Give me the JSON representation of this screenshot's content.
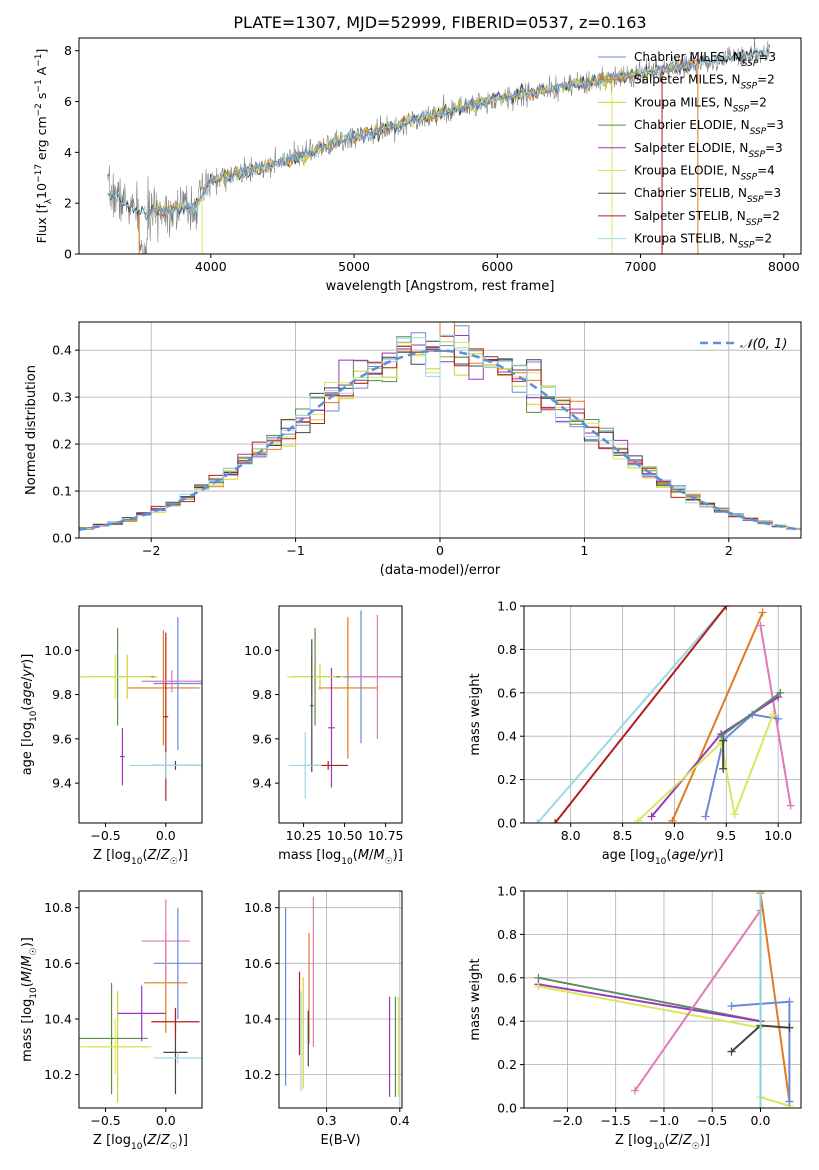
{
  "title": "PLATE=1307, MJD=52999, FIBERID=0537, z=0.163",
  "colors": {
    "Chabrier MILES": "#6a89d8",
    "Salpeter MILES": "#e07b22",
    "Kroupa MILES": "#d6d12e",
    "Chabrier ELODIE": "#5c8b4a",
    "Salpeter ELODIE": "#9b38b8",
    "Kroupa ELODIE": "#d7e85a",
    "Chabrier STELIB": "#454545",
    "Salpeter STELIB": "#b51e1e",
    "Kroupa STELIB": "#9ad8e6",
    "pink": "#e07ab8",
    "cyan": "#86d6d6",
    "green": "#5b8a6b",
    "data": "#808080",
    "normal": "#5b8fd9"
  },
  "chart_data": [
    {
      "id": "spectrum",
      "type": "line",
      "xlabel": "wavelength [Angstrom, rest frame]",
      "ylabel": "Flux [f_λ 10^-17 erg cm^-2 s^-1 A^-1]",
      "xlim": [
        3080,
        8120
      ],
      "ylim": [
        0,
        8.5
      ],
      "xticks": [
        4000,
        5000,
        6000,
        7000,
        8000
      ],
      "yticks": [
        0,
        2,
        4,
        6,
        8
      ],
      "continuum": [
        [
          3280,
          2.5
        ],
        [
          3500,
          1.6
        ],
        [
          3900,
          1.9
        ],
        [
          4000,
          2.9
        ],
        [
          4500,
          3.6
        ],
        [
          5000,
          4.6
        ],
        [
          5500,
          5.4
        ],
        [
          6000,
          6.1
        ],
        [
          6500,
          6.6
        ],
        [
          7000,
          7.1
        ],
        [
          7500,
          7.6
        ],
        [
          7900,
          8.0
        ]
      ],
      "legend": [
        {
          "label": "Chabrier MILES",
          "n": 3
        },
        {
          "label": "Salpeter MILES",
          "n": 2
        },
        {
          "label": "Kroupa MILES",
          "n": 2
        },
        {
          "label": "Chabrier ELODIE",
          "n": 3
        },
        {
          "label": "Salpeter ELODIE",
          "n": 3
        },
        {
          "label": "Kroupa ELODIE",
          "n": 4
        },
        {
          "label": "Chabrier STELIB",
          "n": 3
        },
        {
          "label": "Salpeter STELIB",
          "n": 2
        },
        {
          "label": "Kroupa STELIB",
          "n": 2
        }
      ],
      "legend_position": "right"
    },
    {
      "id": "residuals",
      "type": "line",
      "xlabel": "(data-model)/error",
      "ylabel": "Normed distribution",
      "xlim": [
        -2.5,
        2.5
      ],
      "ylim": [
        0,
        0.46
      ],
      "xticks": [
        -2,
        -1,
        0,
        1,
        2
      ],
      "yticks": [
        0.0,
        0.1,
        0.2,
        0.3,
        0.4
      ],
      "legend": "𝒩(0, 1)",
      "legend_position": "top-right",
      "grid": true,
      "bin_width": 0.1
    },
    {
      "id": "age-z",
      "type": "scatter",
      "xlabel": "Z [log10(Z/Z☉)]",
      "ylabel": "age [log10(age/yr)]",
      "xlim": [
        -0.72,
        0.3
      ],
      "ylim": [
        9.22,
        10.2
      ],
      "xticks": [
        -0.5,
        0.0
      ],
      "yticks": [
        9.4,
        9.6,
        9.8,
        10.0
      ],
      "points": [
        {
          "model": "Chabrier MILES",
          "x": 0.1,
          "y": 9.85,
          "xerr": 0.2,
          "yerr": 0.3
        },
        {
          "model": "Salpeter MILES",
          "x": -0.02,
          "y": 9.83,
          "xerr": 0.3,
          "yerr": 0.26
        },
        {
          "model": "Kroupa MILES",
          "x": -0.32,
          "y": 9.88,
          "xerr": 0.25,
          "yerr": 0.1
        },
        {
          "model": "Chabrier ELODIE",
          "x": -0.4,
          "y": 9.88,
          "xerr": 0.3,
          "yerr": 0.22
        },
        {
          "model": "Salpeter ELODIE",
          "x": -0.36,
          "y": 9.52,
          "xerr": 0.02,
          "yerr": 0.13
        },
        {
          "model": "Kroupa ELODIE",
          "x": -0.42,
          "y": 9.88,
          "xerr": 0.3,
          "yerr": 0.1
        },
        {
          "model": "Chabrier STELIB",
          "x": 0.08,
          "y": 9.48,
          "xerr": 0.2,
          "yerr": 0.02
        },
        {
          "model": "Salpeter STELIB",
          "x": 0.0,
          "y": 9.7,
          "xerr": 0.02,
          "yerr": 0.38
        },
        {
          "model": "Kroupa STELIB",
          "x": 0.0,
          "y": 9.48,
          "xerr": 0.3,
          "yerr": 0.06
        },
        {
          "model": "pink",
          "x": 0.05,
          "y": 9.86,
          "xerr": 0.25,
          "yerr": 0.05
        }
      ]
    },
    {
      "id": "age-mass",
      "type": "scatter",
      "xlabel": "mass [log10(M/M☉)]",
      "ylabel": "",
      "xlim": [
        10.1,
        10.85
      ],
      "ylim": [
        9.22,
        10.2
      ],
      "xticks": [
        10.25,
        10.5,
        10.75
      ],
      "yticks": [
        9.4,
        9.6,
        9.8,
        10.0
      ],
      "points": [
        {
          "model": "Chabrier MILES",
          "x": 10.6,
          "y": 9.88,
          "xerr": 0.3,
          "yerr": 0.3
        },
        {
          "model": "Salpeter MILES",
          "x": 10.52,
          "y": 9.83,
          "xerr": 0.18,
          "yerr": 0.32
        },
        {
          "model": "Kroupa MILES",
          "x": 10.35,
          "y": 9.88,
          "xerr": 0.15,
          "yerr": 0.06
        },
        {
          "model": "Chabrier ELODIE",
          "x": 10.32,
          "y": 9.88,
          "xerr": 0.15,
          "yerr": 0.22
        },
        {
          "model": "Salpeter ELODIE",
          "x": 10.42,
          "y": 9.65,
          "xerr": 0.02,
          "yerr": 0.27
        },
        {
          "model": "Kroupa ELODIE",
          "x": 10.3,
          "y": 9.88,
          "xerr": 0.15,
          "yerr": 0.1
        },
        {
          "model": "Chabrier STELIB",
          "x": 10.3,
          "y": 9.75,
          "xerr": 0.01,
          "yerr": 0.3
        },
        {
          "model": "Salpeter STELIB",
          "x": 10.4,
          "y": 9.48,
          "xerr": 0.12,
          "yerr": 0.02
        },
        {
          "model": "Kroupa STELIB",
          "x": 10.26,
          "y": 9.48,
          "xerr": 0.1,
          "yerr": 0.15
        },
        {
          "model": "pink",
          "x": 10.7,
          "y": 9.88,
          "xerr": 0.15,
          "yerr": 0.28
        }
      ]
    },
    {
      "id": "weight-age",
      "type": "line",
      "xlabel": "age [log10(age/yr)]",
      "ylabel": "mass weight",
      "xlim": [
        7.55,
        10.22
      ],
      "ylim": [
        0,
        1.0
      ],
      "xticks": [
        8.0,
        8.5,
        9.0,
        9.5,
        10.0
      ],
      "yticks": [
        0.0,
        0.2,
        0.4,
        0.6,
        0.8,
        1.0
      ],
      "grid": true,
      "series": [
        {
          "model": "Kroupa STELIB",
          "points": [
            [
              7.68,
              0
            ],
            [
              9.5,
              1.0
            ]
          ]
        },
        {
          "model": "Salpeter STELIB",
          "points": [
            [
              7.85,
              0
            ],
            [
              9.5,
              1.0
            ]
          ]
        },
        {
          "model": "Salpeter MILES",
          "points": [
            [
              8.98,
              0.01
            ],
            [
              9.85,
              0.97
            ]
          ]
        },
        {
          "model": "pink",
          "points": [
            [
              9.83,
              0.91
            ],
            [
              10.12,
              0.08
            ]
          ]
        },
        {
          "model": "Chabrier MILES",
          "points": [
            [
              9.3,
              0.03
            ],
            [
              9.47,
              0.38
            ],
            [
              9.75,
              0.5
            ],
            [
              10.0,
              0.48
            ]
          ]
        },
        {
          "model": "Salpeter ELODIE",
          "points": [
            [
              8.78,
              0.03
            ],
            [
              9.45,
              0.41
            ],
            [
              10.0,
              0.58
            ]
          ]
        },
        {
          "model": "green",
          "points": [
            [
              9.45,
              0.4
            ],
            [
              10.02,
              0.6
            ]
          ]
        },
        {
          "model": "Kroupa ELODIE",
          "points": [
            [
              8.65,
              0.01
            ],
            [
              9.45,
              0.37
            ],
            [
              9.58,
              0.04
            ],
            [
              9.95,
              0.5
            ]
          ]
        },
        {
          "model": "Chabrier STELIB",
          "points": [
            [
              9.47,
              0.38
            ],
            [
              9.47,
              0.25
            ]
          ]
        }
      ]
    },
    {
      "id": "mass-z",
      "type": "scatter",
      "xlabel": "Z [log10(Z/Z☉)]",
      "ylabel": "mass [log10(M/M☉)]",
      "xlim": [
        -0.72,
        0.3
      ],
      "ylim": [
        10.08,
        10.86
      ],
      "xticks": [
        -0.5,
        0.0
      ],
      "yticks": [
        10.2,
        10.4,
        10.6,
        10.8
      ],
      "points": [
        {
          "model": "Chabrier MILES",
          "x": 0.1,
          "y": 10.6,
          "xerr": 0.2,
          "yerr": 0.2
        },
        {
          "model": "Salpeter MILES",
          "x": 0.0,
          "y": 10.53,
          "xerr": 0.18,
          "yerr": 0.18
        },
        {
          "model": "Kroupa MILES",
          "x": -0.4,
          "y": 10.3,
          "xerr": 0.25,
          "yerr": 0.2
        },
        {
          "model": "Chabrier ELODIE",
          "x": -0.45,
          "y": 10.33,
          "xerr": 0.3,
          "yerr": 0.2
        },
        {
          "model": "Salpeter ELODIE",
          "x": -0.2,
          "y": 10.42,
          "xerr": 0.2,
          "yerr": 0.1
        },
        {
          "model": "Kroupa ELODIE",
          "x": -0.42,
          "y": 10.3,
          "xerr": 0.3,
          "yerr": 0.1
        },
        {
          "model": "Chabrier STELIB",
          "x": 0.08,
          "y": 10.28,
          "xerr": 0.1,
          "yerr": 0.15
        },
        {
          "model": "Salpeter STELIB",
          "x": 0.08,
          "y": 10.39,
          "xerr": 0.2,
          "yerr": 0.05
        },
        {
          "model": "Kroupa STELIB",
          "x": 0.1,
          "y": 10.26,
          "xerr": 0.2,
          "yerr": 0.02
        },
        {
          "model": "pink",
          "x": 0.0,
          "y": 10.68,
          "xerr": 0.2,
          "yerr": 0.15
        }
      ]
    },
    {
      "id": "mass-ebv",
      "type": "scatter",
      "xlabel": "E(B-V)",
      "ylabel": "",
      "xlim": [
        0.235,
        0.403
      ],
      "ylim": [
        10.08,
        10.86
      ],
      "xticks": [
        0.3,
        0.4
      ],
      "yticks": [
        10.2,
        10.4,
        10.6,
        10.8
      ],
      "grid": true,
      "points": [
        {
          "model": "Chabrier MILES",
          "x": 0.244,
          "y": 10.48,
          "yerr": 0.32
        },
        {
          "model": "Salpeter MILES",
          "x": 0.276,
          "y": 10.51,
          "yerr": 0.2
        },
        {
          "model": "Kroupa MILES",
          "x": 0.268,
          "y": 10.35,
          "yerr": 0.2
        },
        {
          "model": "Chabrier ELODIE",
          "x": 0.394,
          "y": 10.3,
          "yerr": 0.18
        },
        {
          "model": "Salpeter ELODIE",
          "x": 0.386,
          "y": 10.3,
          "yerr": 0.18
        },
        {
          "model": "Kroupa ELODIE",
          "x": 0.398,
          "y": 10.3,
          "yerr": 0.18
        },
        {
          "model": "Chabrier STELIB",
          "x": 0.275,
          "y": 10.33,
          "yerr": 0.1
        },
        {
          "model": "Salpeter STELIB",
          "x": 0.263,
          "y": 10.42,
          "yerr": 0.15
        },
        {
          "model": "Kroupa STELIB",
          "x": 0.265,
          "y": 10.32,
          "yerr": 0.18
        },
        {
          "model": "pink",
          "x": 0.282,
          "y": 10.57,
          "yerr": 0.27
        }
      ]
    },
    {
      "id": "weight-z",
      "type": "line",
      "xlabel": "Z [log10(Z/Z☉)]",
      "ylabel": "mass weight",
      "xlim": [
        -2.45,
        0.42
      ],
      "ylim": [
        0,
        1.0
      ],
      "xticks": [
        -2.0,
        -1.5,
        -1.0,
        -0.5,
        0.0
      ],
      "yticks": [
        0.0,
        0.2,
        0.4,
        0.6,
        0.8,
        1.0
      ],
      "grid": true,
      "series": [
        {
          "model": "green",
          "points": [
            [
              -2.3,
              0.6
            ],
            [
              0.0,
              0.4
            ]
          ]
        },
        {
          "model": "Salpeter ELODIE",
          "points": [
            [
              -2.3,
              0.57
            ],
            [
              0.0,
              0.4
            ]
          ]
        },
        {
          "model": "Kroupa ELODIE",
          "points": [
            [
              -2.3,
              0.56
            ],
            [
              0.0,
              0.37
            ],
            [
              0.0,
              0.05
            ],
            [
              0.3,
              0.01
            ]
          ]
        },
        {
          "model": "pink",
          "points": [
            [
              -1.3,
              0.08
            ],
            [
              0.0,
              0.91
            ]
          ]
        },
        {
          "model": "Salpeter MILES",
          "points": [
            [
              0.0,
              0.99
            ],
            [
              0.3,
              0.03
            ]
          ]
        },
        {
          "model": "Chabrier MILES",
          "points": [
            [
              -0.3,
              0.47
            ],
            [
              0.3,
              0.49
            ],
            [
              0.3,
              0.03
            ]
          ]
        },
        {
          "model": "Chabrier STELIB",
          "points": [
            [
              -0.3,
              0.26
            ],
            [
              0.0,
              0.38
            ],
            [
              0.3,
              0.37
            ]
          ]
        },
        {
          "model": "cyan",
          "points": [
            [
              0.0,
              1.0
            ],
            [
              0.0,
              0.0
            ]
          ]
        }
      ]
    }
  ]
}
